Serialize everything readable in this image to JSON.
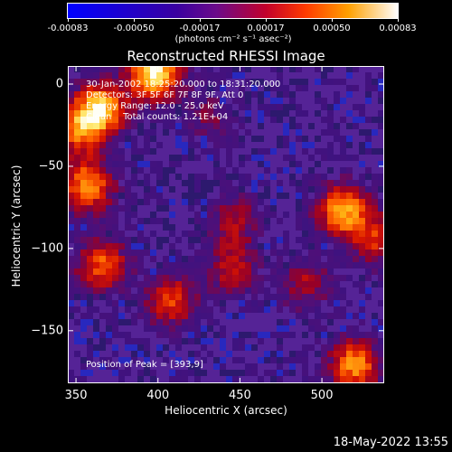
{
  "colorbar": {
    "ticks": [
      "-0.00083",
      "-0.00050",
      "-0.00017",
      "0.00017",
      "0.00050",
      "0.00083"
    ],
    "label": "(photons cm⁻² s⁻¹ asec⁻²)"
  },
  "chart_data": {
    "type": "heatmap",
    "title": "Reconstructed RHESSI Image",
    "xlabel": "Heliocentric X (arcsec)",
    "ylabel": "Heliocentric Y (arcsec)",
    "xlim": [
      345,
      538
    ],
    "ylim": [
      -182,
      11
    ],
    "xticks": [
      "350",
      "400",
      "450",
      "500"
    ],
    "yticks": [
      "0",
      "−50",
      "−100",
      "−150"
    ],
    "colorscale_range": [
      -0.00083,
      0.00083
    ],
    "annotations": {
      "time_range": "30-Jan-2002 18:25:20.000 to 18:31:20.000",
      "detectors": "Detectors: 3F 5F 6F 7F 8F 9F, Att 0",
      "energy": "Energy Range: 12.0 - 25.0 keV",
      "clean": "Clean    Total counts: 1.21E+04",
      "peak": "Position of Peak = [393,9]"
    },
    "hotspots": [
      {
        "x": 398,
        "y": 7,
        "value": 0.00083
      },
      {
        "x": 365,
        "y": -15,
        "value": 0.0007
      },
      {
        "x": 352,
        "y": -28,
        "value": 0.0005
      },
      {
        "x": 357,
        "y": -62,
        "value": 0.0006
      },
      {
        "x": 366,
        "y": -110,
        "value": 0.0005
      },
      {
        "x": 408,
        "y": -132,
        "value": 0.00045
      },
      {
        "x": 445,
        "y": -112,
        "value": 0.00035
      },
      {
        "x": 513,
        "y": -77,
        "value": 0.00065
      },
      {
        "x": 533,
        "y": -95,
        "value": 0.0004
      },
      {
        "x": 520,
        "y": -171,
        "value": 0.0006
      },
      {
        "x": 447,
        "y": -83,
        "value": 0.0003
      },
      {
        "x": 490,
        "y": -122,
        "value": 0.0003
      },
      {
        "x": 430,
        "y": -20,
        "value": 0.0002
      }
    ]
  },
  "footer": {
    "date": "18-May-2022 13:55"
  }
}
